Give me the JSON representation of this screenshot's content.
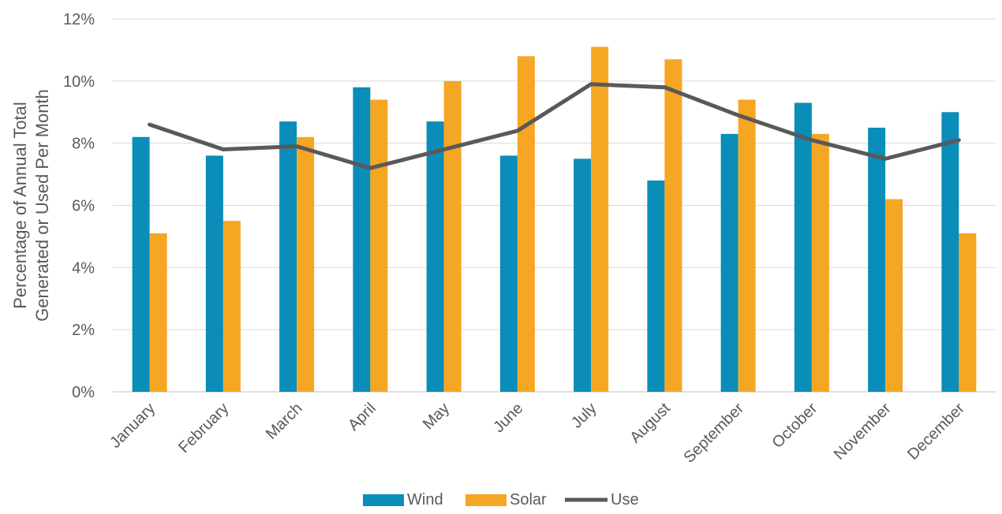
{
  "chart_data": {
    "type": "bar",
    "categories": [
      "January",
      "February",
      "March",
      "April",
      "May",
      "June",
      "July",
      "August",
      "September",
      "October",
      "November",
      "December"
    ],
    "series": [
      {
        "name": "Wind",
        "kind": "bar",
        "color": "#0A8DB8",
        "values": [
          8.2,
          7.6,
          8.7,
          9.8,
          8.7,
          7.6,
          7.5,
          6.8,
          8.3,
          9.3,
          8.5,
          9.0
        ]
      },
      {
        "name": "Solar",
        "kind": "bar",
        "color": "#F5A623",
        "values": [
          5.1,
          5.5,
          8.2,
          9.4,
          10.0,
          10.8,
          11.1,
          10.7,
          9.4,
          8.3,
          6.2,
          5.1
        ]
      },
      {
        "name": "Use",
        "kind": "line",
        "color": "#595959",
        "values": [
          8.6,
          7.8,
          7.9,
          7.2,
          7.8,
          8.4,
          9.9,
          9.8,
          8.9,
          8.1,
          7.5,
          8.1
        ]
      }
    ],
    "ylabel_lines": [
      "Percentage of Annual Total",
      "Generated or Used Per Month"
    ],
    "ylim": [
      0,
      12
    ],
    "yticks": [
      0,
      2,
      4,
      6,
      8,
      10,
      12
    ],
    "ytick_labels": [
      "0%",
      "2%",
      "4%",
      "6%",
      "8%",
      "10%",
      "12%"
    ],
    "grid": true,
    "legend": "bottom"
  }
}
